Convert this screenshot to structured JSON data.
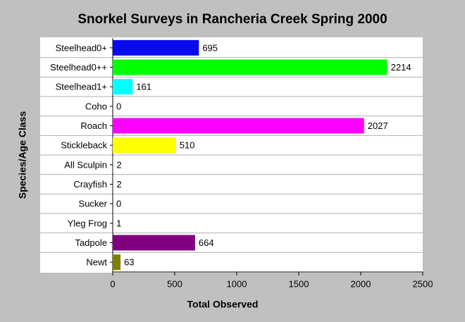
{
  "chart_data": {
    "type": "bar",
    "orientation": "horizontal",
    "title": "Snorkel Surveys in Rancheria Creek Spring 2000",
    "x_label": "Total Observed",
    "y_label": "Species/Age Class",
    "categories": [
      "Steelhead0+",
      "Steelhead0++",
      "Steelhead1+",
      "Coho",
      "Roach",
      "Stickleback",
      "All Sculpin",
      "Crayfish",
      "Sucker",
      "Yleg Frog",
      "Tadpole",
      "Newt"
    ],
    "values": [
      695,
      2214,
      161,
      0,
      2027,
      510,
      2,
      2,
      0,
      1,
      664,
      63
    ],
    "colors": [
      "#0a0af0",
      "#00ff00",
      "#00ffff",
      "#ff0000",
      "#ff00ff",
      "#ffff00",
      "#008080",
      "#006400",
      "#808080",
      "#800000",
      "#800080",
      "#808000"
    ],
    "xlim": [
      0,
      2500
    ],
    "xticks": [
      0,
      500,
      1000,
      1500,
      2000,
      2500
    ]
  }
}
